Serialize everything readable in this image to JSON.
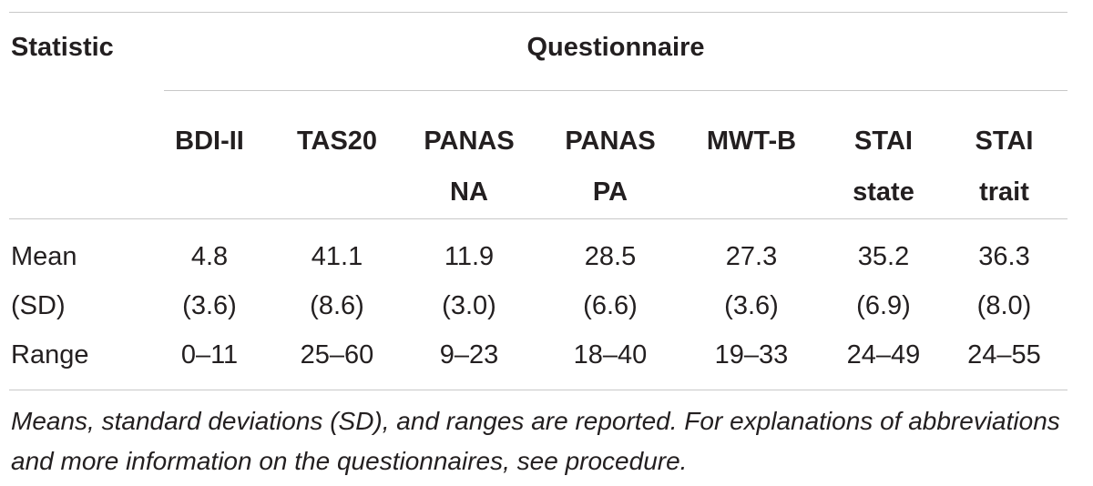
{
  "table": {
    "stat_header": "Statistic",
    "group_header": "Questionnaire",
    "columns": [
      {
        "line1": "BDI-II",
        "line2": ""
      },
      {
        "line1": "TAS20",
        "line2": ""
      },
      {
        "line1": "PANAS",
        "line2": "NA"
      },
      {
        "line1": "PANAS",
        "line2": "PA"
      },
      {
        "line1": "MWT-B",
        "line2": ""
      },
      {
        "line1": "STAI",
        "line2": "state"
      },
      {
        "line1": "STAI",
        "line2": "trait"
      }
    ],
    "rows": [
      {
        "label": "Mean",
        "values": [
          "4.8",
          "41.1",
          "11.9",
          "28.5",
          "27.3",
          "35.2",
          "36.3"
        ]
      },
      {
        "label": "(SD)",
        "values": [
          "(3.6)",
          "(8.6)",
          "(3.0)",
          "(6.6)",
          "(3.6)",
          "(6.9)",
          "(8.0)"
        ]
      },
      {
        "label": "Range",
        "values": [
          "0–11",
          "25–60",
          "9–23",
          "18–40",
          "19–33",
          "24–49",
          "24–55"
        ]
      }
    ],
    "footnote": "Means, standard deviations (SD), and ranges are reported. For explanations of abbreviations and more information on the questionnaires, see procedure."
  }
}
